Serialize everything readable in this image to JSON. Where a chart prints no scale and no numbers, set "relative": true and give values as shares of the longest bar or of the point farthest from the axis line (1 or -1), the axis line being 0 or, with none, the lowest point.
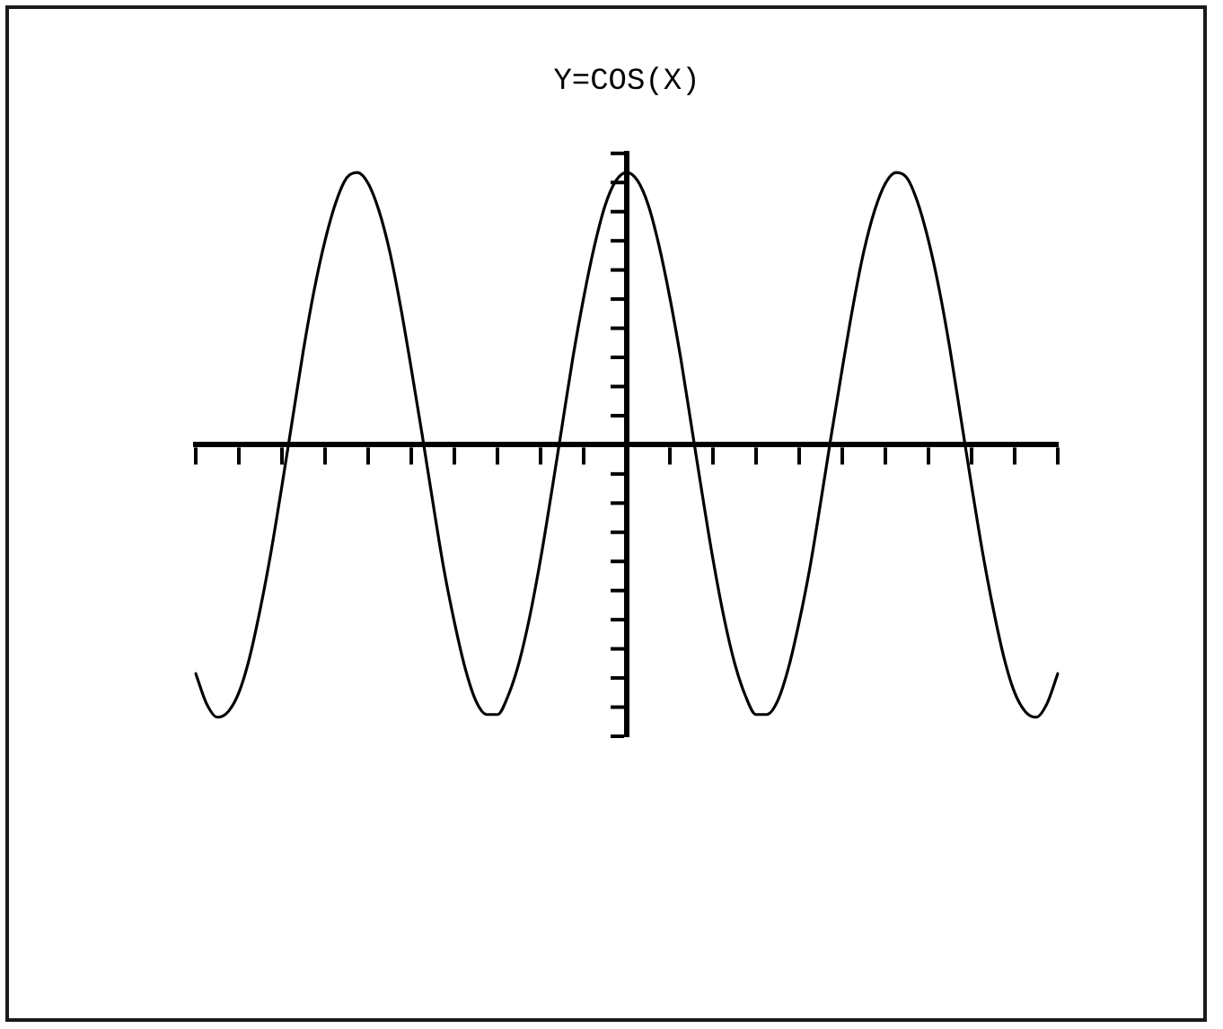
{
  "chart_data": {
    "type": "line",
    "title": "Y=COS(X)",
    "categories": [
      null,
      null,
      null,
      null,
      null,
      null,
      null,
      null,
      null,
      null,
      null,
      null,
      null,
      null,
      null,
      null,
      null,
      null,
      null,
      null,
      null,
      null,
      null,
      null,
      null,
      null,
      null,
      null,
      null,
      null,
      null,
      null,
      null,
      null,
      null,
      null,
      null,
      null,
      null,
      null,
      null,
      null,
      null,
      null,
      null,
      null,
      null,
      null,
      null,
      null,
      null,
      null,
      null,
      null,
      null,
      null,
      null,
      null,
      null,
      null,
      null,
      null,
      null,
      null,
      null,
      null,
      null,
      null,
      null,
      null,
      null,
      null,
      null,
      null,
      null,
      null,
      null,
      null,
      null,
      null,
      null
    ],
    "values": [
      -0.84,
      -0.95,
      -1.0,
      -0.98,
      -0.91,
      -0.78,
      -0.6,
      -0.39,
      -0.15,
      0.1,
      0.35,
      0.57,
      0.75,
      0.89,
      0.98,
      1.0,
      0.96,
      0.86,
      0.71,
      0.51,
      0.28,
      0.04,
      -0.21,
      -0.45,
      -0.65,
      -0.82,
      -0.94,
      -0.99,
      -0.99,
      -0.92,
      -0.8,
      -0.63,
      -0.42,
      -0.18,
      0.07,
      0.32,
      0.54,
      0.73,
      0.88,
      0.97,
      1.0,
      0.97,
      0.88,
      0.73,
      0.54,
      0.32,
      0.07,
      -0.18,
      -0.42,
      -0.63,
      -0.8,
      -0.92,
      -0.99,
      -0.99,
      -0.94,
      -0.82,
      -0.65,
      -0.45,
      -0.21,
      0.04,
      0.28,
      0.51,
      0.71,
      0.86,
      0.96,
      1.0,
      0.98,
      0.89,
      0.75,
      0.57,
      0.35,
      0.1,
      -0.15,
      -0.39,
      -0.6,
      -0.78,
      -0.91,
      -0.98,
      -1.0,
      -0.95,
      -0.84
    ],
    "color": "#000000",
    "relative": true
  }
}
